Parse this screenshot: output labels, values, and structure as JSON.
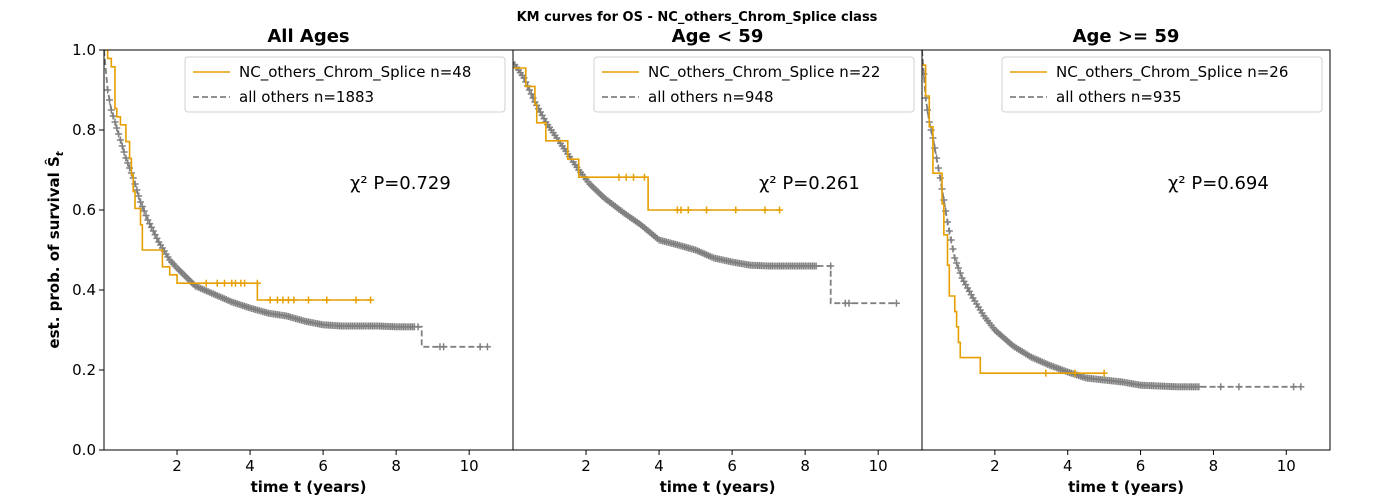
{
  "figure": {
    "suptitle": "KM curves for OS - NC_others_Chrom_Splice class",
    "ylabel": "est. prob. of survival Ŝt",
    "colors": {
      "group": "#E69F00",
      "others": "#808080"
    }
  },
  "chart_data": [
    {
      "type": "line",
      "title": "All Ages",
      "xlabel": "time t (years)",
      "ylabel": "est. prob. of survival Ŝt",
      "xlim": [
        0,
        11.2
      ],
      "ylim": [
        0,
        1.0
      ],
      "xticks": [
        2,
        4,
        6,
        8,
        10
      ],
      "yticks": [
        0.0,
        0.2,
        0.4,
        0.6,
        0.8,
        1.0
      ],
      "legend_position": "top-right",
      "annotation": "χ² P=0.729",
      "series": [
        {
          "name": "NC_others_Chrom_Splice n=48",
          "style": "solid",
          "color": "#E69F00",
          "steps": [
            [
              0,
              1.0
            ],
            [
              0.1,
              0.979
            ],
            [
              0.2,
              0.958
            ],
            [
              0.3,
              0.854
            ],
            [
              0.35,
              0.833
            ],
            [
              0.45,
              0.813
            ],
            [
              0.6,
              0.771
            ],
            [
              0.7,
              0.729
            ],
            [
              0.75,
              0.688
            ],
            [
              0.8,
              0.646
            ],
            [
              0.85,
              0.604
            ],
            [
              1.0,
              0.563
            ],
            [
              1.05,
              0.5
            ],
            [
              1.6,
              0.458
            ],
            [
              1.8,
              0.438
            ],
            [
              2.0,
              0.417
            ],
            [
              4.2,
              0.375
            ],
            [
              7.3,
              0.375
            ]
          ],
          "censors": [
            [
              2.8,
              0.417
            ],
            [
              3.1,
              0.417
            ],
            [
              3.3,
              0.417
            ],
            [
              3.5,
              0.417
            ],
            [
              3.6,
              0.417
            ],
            [
              3.75,
              0.417
            ],
            [
              3.85,
              0.417
            ],
            [
              4.2,
              0.417
            ],
            [
              4.55,
              0.375
            ],
            [
              4.75,
              0.375
            ],
            [
              4.9,
              0.375
            ],
            [
              5.05,
              0.375
            ],
            [
              5.2,
              0.375
            ],
            [
              5.6,
              0.375
            ],
            [
              6.1,
              0.375
            ],
            [
              6.9,
              0.375
            ],
            [
              7.3,
              0.375
            ]
          ]
        },
        {
          "name": "all others n=1883",
          "style": "dashed",
          "color": "#808080",
          "curve": [
            [
              0,
              1.0
            ],
            [
              0.1,
              0.9
            ],
            [
              0.2,
              0.85
            ],
            [
              0.4,
              0.79
            ],
            [
              0.6,
              0.73
            ],
            [
              0.8,
              0.68
            ],
            [
              1.0,
              0.62
            ],
            [
              1.2,
              0.575
            ],
            [
              1.5,
              0.52
            ],
            [
              1.8,
              0.475
            ],
            [
              2.0,
              0.455
            ],
            [
              2.5,
              0.41
            ],
            [
              3.0,
              0.39
            ],
            [
              3.5,
              0.37
            ],
            [
              4.0,
              0.355
            ],
            [
              4.5,
              0.342
            ],
            [
              5.0,
              0.335
            ],
            [
              5.5,
              0.322
            ],
            [
              6.0,
              0.313
            ],
            [
              6.5,
              0.31
            ],
            [
              7.0,
              0.31
            ],
            [
              7.5,
              0.31
            ],
            [
              8.0,
              0.308
            ],
            [
              8.7,
              0.308
            ],
            [
              8.7,
              0.258
            ],
            [
              10.5,
              0.258
            ]
          ],
          "censor_range": [
            0.1,
            8.5
          ],
          "extra_censors": [
            [
              8.6,
              0.308
            ],
            [
              9.2,
              0.258
            ],
            [
              9.3,
              0.258
            ],
            [
              10.3,
              0.258
            ],
            [
              10.5,
              0.258
            ]
          ]
        }
      ]
    },
    {
      "type": "line",
      "title": "Age < 59",
      "xlabel": "time t (years)",
      "ylabel": "",
      "xlim": [
        0,
        11.2
      ],
      "ylim": [
        0,
        1.0
      ],
      "xticks": [
        2,
        4,
        6,
        8,
        10
      ],
      "yticks": [],
      "legend_position": "top-right",
      "annotation": "χ² P=0.261",
      "series": [
        {
          "name": "NC_others_Chrom_Splice n=22",
          "style": "solid",
          "color": "#E69F00",
          "steps": [
            [
              0,
              0.955
            ],
            [
              0.35,
              0.909
            ],
            [
              0.6,
              0.864
            ],
            [
              0.65,
              0.818
            ],
            [
              0.9,
              0.773
            ],
            [
              1.5,
              0.727
            ],
            [
              1.8,
              0.682
            ],
            [
              3.7,
              0.6
            ],
            [
              7.3,
              0.6
            ]
          ],
          "censors": [
            [
              2.9,
              0.682
            ],
            [
              3.1,
              0.682
            ],
            [
              3.3,
              0.682
            ],
            [
              3.6,
              0.682
            ],
            [
              4.5,
              0.6
            ],
            [
              4.6,
              0.6
            ],
            [
              4.8,
              0.6
            ],
            [
              5.3,
              0.6
            ],
            [
              6.1,
              0.6
            ],
            [
              6.9,
              0.6
            ],
            [
              7.3,
              0.6
            ]
          ]
        },
        {
          "name": "all others n=948",
          "style": "dashed",
          "color": "#808080",
          "curve": [
            [
              0,
              0.97
            ],
            [
              0.3,
              0.93
            ],
            [
              0.6,
              0.87
            ],
            [
              0.9,
              0.82
            ],
            [
              1.2,
              0.78
            ],
            [
              1.5,
              0.74
            ],
            [
              1.8,
              0.7
            ],
            [
              2.1,
              0.665
            ],
            [
              2.5,
              0.63
            ],
            [
              3.0,
              0.595
            ],
            [
              3.5,
              0.563
            ],
            [
              4.0,
              0.525
            ],
            [
              4.5,
              0.513
            ],
            [
              5.0,
              0.5
            ],
            [
              5.5,
              0.48
            ],
            [
              6.0,
              0.47
            ],
            [
              6.5,
              0.462
            ],
            [
              7.0,
              0.46
            ],
            [
              7.5,
              0.46
            ],
            [
              8.0,
              0.46
            ],
            [
              8.7,
              0.46
            ],
            [
              8.7,
              0.367
            ],
            [
              10.5,
              0.367
            ]
          ],
          "censor_range": [
            0.05,
            8.3
          ],
          "extra_censors": [
            [
              8.7,
              0.46
            ],
            [
              9.1,
              0.367
            ],
            [
              9.2,
              0.367
            ],
            [
              10.5,
              0.367
            ]
          ]
        }
      ]
    },
    {
      "type": "line",
      "title": "Age >= 59",
      "xlabel": "time t (years)",
      "ylabel": "",
      "xlim": [
        0,
        11.2
      ],
      "ylim": [
        0,
        1.0
      ],
      "xticks": [
        2,
        4,
        6,
        8,
        10
      ],
      "yticks": [],
      "legend_position": "top-right",
      "annotation": "χ² P=0.694",
      "series": [
        {
          "name": "NC_others_Chrom_Splice n=26",
          "style": "solid",
          "color": "#E69F00",
          "steps": [
            [
              0,
              0.962
            ],
            [
              0.1,
              0.885
            ],
            [
              0.2,
              0.808
            ],
            [
              0.3,
              0.692
            ],
            [
              0.55,
              0.615
            ],
            [
              0.6,
              0.538
            ],
            [
              0.7,
              0.462
            ],
            [
              0.75,
              0.385
            ],
            [
              0.9,
              0.346
            ],
            [
              0.95,
              0.308
            ],
            [
              1.0,
              0.269
            ],
            [
              1.05,
              0.231
            ],
            [
              1.6,
              0.192
            ],
            [
              5.0,
              0.192
            ]
          ],
          "censors": [
            [
              3.4,
              0.192
            ],
            [
              4.2,
              0.192
            ],
            [
              5.0,
              0.192
            ]
          ]
        },
        {
          "name": "all others n=935",
          "style": "dashed",
          "color": "#808080",
          "curve": [
            [
              0,
              1.0
            ],
            [
              0.1,
              0.88
            ],
            [
              0.2,
              0.82
            ],
            [
              0.3,
              0.78
            ],
            [
              0.5,
              0.68
            ],
            [
              0.7,
              0.57
            ],
            [
              0.9,
              0.48
            ],
            [
              1.1,
              0.43
            ],
            [
              1.4,
              0.38
            ],
            [
              1.7,
              0.335
            ],
            [
              2.0,
              0.3
            ],
            [
              2.5,
              0.26
            ],
            [
              3.0,
              0.232
            ],
            [
              3.5,
              0.212
            ],
            [
              4.0,
              0.195
            ],
            [
              4.5,
              0.18
            ],
            [
              5.0,
              0.175
            ],
            [
              5.5,
              0.17
            ],
            [
              6.0,
              0.162
            ],
            [
              7.0,
              0.158
            ],
            [
              8.0,
              0.158
            ],
            [
              9.0,
              0.158
            ],
            [
              10.4,
              0.158
            ]
          ],
          "censor_range": [
            0.05,
            7.6
          ],
          "extra_censors": [
            [
              8.2,
              0.158
            ],
            [
              8.7,
              0.158
            ],
            [
              10.2,
              0.158
            ],
            [
              10.4,
              0.158
            ]
          ]
        }
      ]
    }
  ]
}
